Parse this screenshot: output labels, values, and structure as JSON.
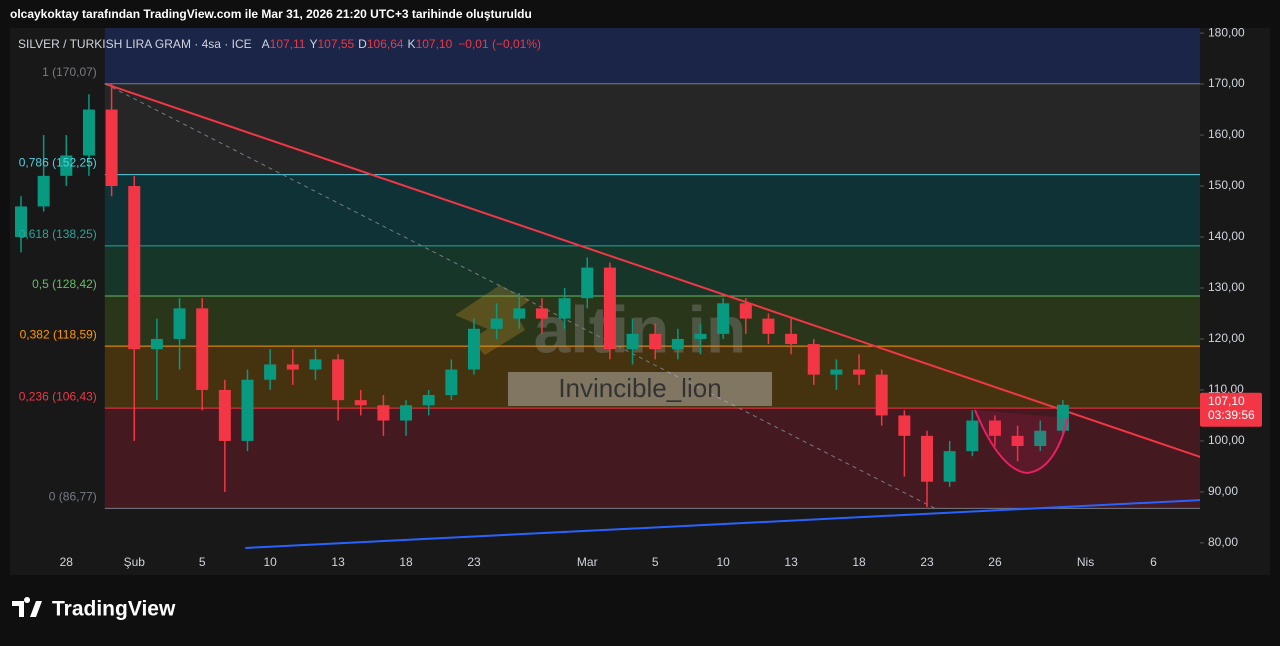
{
  "header": "olcaykoktay tarafından TradingView.com ile Mar 31, 2026 21:20 UTC+3 tarihinde oluşturuldu",
  "footer": "TradingView",
  "watermark": "altin.in",
  "signature": "Invincible_lion",
  "chart_data": {
    "type": "candlestick",
    "title": "SILVER / TURKISH LIRA GRAM · 4sa · ICE",
    "legend": [
      {
        "key": "A",
        "value": 107.11,
        "label": "107,11"
      },
      {
        "key": "Y",
        "value": 107.55,
        "label": "107,55"
      },
      {
        "key": "D",
        "value": 106.64,
        "label": "106,64"
      },
      {
        "key": "K",
        "value": 107.1,
        "label": "107,10"
      }
    ],
    "change_label": "−0,01 (−0,01%)",
    "categories": [
      null,
      null,
      "28",
      null,
      null,
      "Şub",
      null,
      null,
      "5",
      null,
      null,
      "10",
      null,
      null,
      "13",
      null,
      null,
      "18",
      null,
      null,
      "23",
      null,
      null,
      null,
      null,
      "Mar",
      null,
      null,
      "5",
      null,
      null,
      "10",
      null,
      null,
      "13",
      null,
      null,
      "18",
      null,
      null,
      "23",
      null,
      null,
      "26",
      null,
      null,
      null,
      "Nis",
      null,
      null,
      "6",
      null
    ],
    "open": [
      140,
      146,
      152,
      156,
      165,
      150,
      118,
      120,
      126,
      110,
      100,
      112,
      115,
      114,
      116,
      108,
      107,
      104,
      107,
      109,
      114,
      122,
      124,
      126,
      124,
      128,
      134,
      118,
      121,
      118,
      120,
      121,
      127,
      124,
      121,
      119,
      113,
      114,
      113,
      105,
      101,
      92,
      98,
      104,
      101,
      99,
      102,
      null,
      null,
      null,
      null,
      null
    ],
    "high": [
      148,
      160,
      160,
      168,
      170,
      152,
      124,
      128,
      128,
      112,
      114,
      118,
      118,
      118,
      117,
      110,
      109,
      108,
      110,
      116,
      124,
      127,
      129,
      128,
      130,
      136,
      135,
      124,
      123,
      122,
      123,
      128,
      128,
      125,
      124,
      120,
      116,
      117,
      114,
      106,
      102,
      100,
      106,
      105,
      103,
      104,
      108,
      null,
      null,
      null,
      null,
      null
    ],
    "low": [
      137,
      145,
      150,
      152,
      148,
      100,
      108,
      114,
      106,
      90,
      98,
      110,
      111,
      112,
      104,
      105,
      101,
      101,
      105,
      108,
      113,
      120,
      122,
      121,
      122,
      126,
      116,
      115,
      116,
      116,
      117,
      120,
      121,
      119,
      117,
      111,
      110,
      111,
      103,
      93,
      87,
      91,
      97,
      99,
      96,
      98,
      101,
      null,
      null,
      null,
      null,
      null
    ],
    "close": [
      146,
      152,
      156,
      165,
      150,
      118,
      120,
      126,
      110,
      100,
      112,
      115,
      114,
      116,
      108,
      107,
      104,
      107,
      109,
      114,
      122,
      124,
      126,
      124,
      128,
      134,
      118,
      121,
      118,
      120,
      121,
      127,
      124,
      121,
      119,
      113,
      114,
      113,
      105,
      101,
      92,
      98,
      104,
      101,
      99,
      102,
      107.1,
      null,
      null,
      null,
      null,
      null
    ],
    "up_color": "#089981",
    "down_color": "#f23645",
    "ylim": [
      73.7,
      181
    ],
    "yticks": [
      {
        "value": 80,
        "label": "80,00"
      },
      {
        "value": 90,
        "label": "90,00"
      },
      {
        "value": 100,
        "label": "100,00"
      },
      {
        "value": 110,
        "label": "110,00"
      },
      {
        "value": 120,
        "label": "120,00"
      },
      {
        "value": 130,
        "label": "130,00"
      },
      {
        "value": 140,
        "label": "140,00"
      },
      {
        "value": 150,
        "label": "150,00"
      },
      {
        "value": 160,
        "label": "160,00"
      },
      {
        "value": 170,
        "label": "170,00"
      },
      {
        "value": 180,
        "label": "180,00"
      }
    ],
    "last_price": {
      "value": 107.1,
      "label": "107,10",
      "countdown": "03:39:56",
      "color": "#f23645"
    },
    "fib_start": 3.7,
    "fib_above_fill": "#1a2547",
    "fib_levels": [
      {
        "label": "1 (170,07)",
        "value": 170.07,
        "color": "#787b86",
        "fill": "#262626"
      },
      {
        "label": "0,786 (152,25)",
        "value": 152.25,
        "color": "#4dd0e1",
        "fill": "#0f3236"
      },
      {
        "label": "0,618 (138,25)",
        "value": 138.25,
        "color": "#26a69a",
        "fill": "#16362a"
      },
      {
        "label": "0,5 (128,42)",
        "value": 128.42,
        "color": "#66bb6a",
        "fill": "#2a361a"
      },
      {
        "label": "0,382 (118,59)",
        "value": 118.59,
        "color": "#ff9800",
        "fill": "#45330f"
      },
      {
        "label": "0,236 (106,43)",
        "value": 106.43,
        "color": "#f23645",
        "fill": "#44191f"
      },
      {
        "label": "0 (86,77)",
        "value": 86.77,
        "color": "#787b86",
        "fill": null
      }
    ],
    "trendlines": [
      {
        "color": "#f23645",
        "dashed": false,
        "x": [
          3.7,
          52.1
        ],
        "y": [
          170.07,
          96.8
        ]
      },
      {
        "color": "#787b86",
        "dashed": true,
        "x": [
          3.7,
          40.35
        ],
        "y": [
          170.07,
          86.77
        ]
      },
      {
        "color": "#2962ff",
        "dashed": false,
        "x": [
          9.9,
          52.1
        ],
        "y": [
          79,
          88.4
        ]
      }
    ]
  }
}
